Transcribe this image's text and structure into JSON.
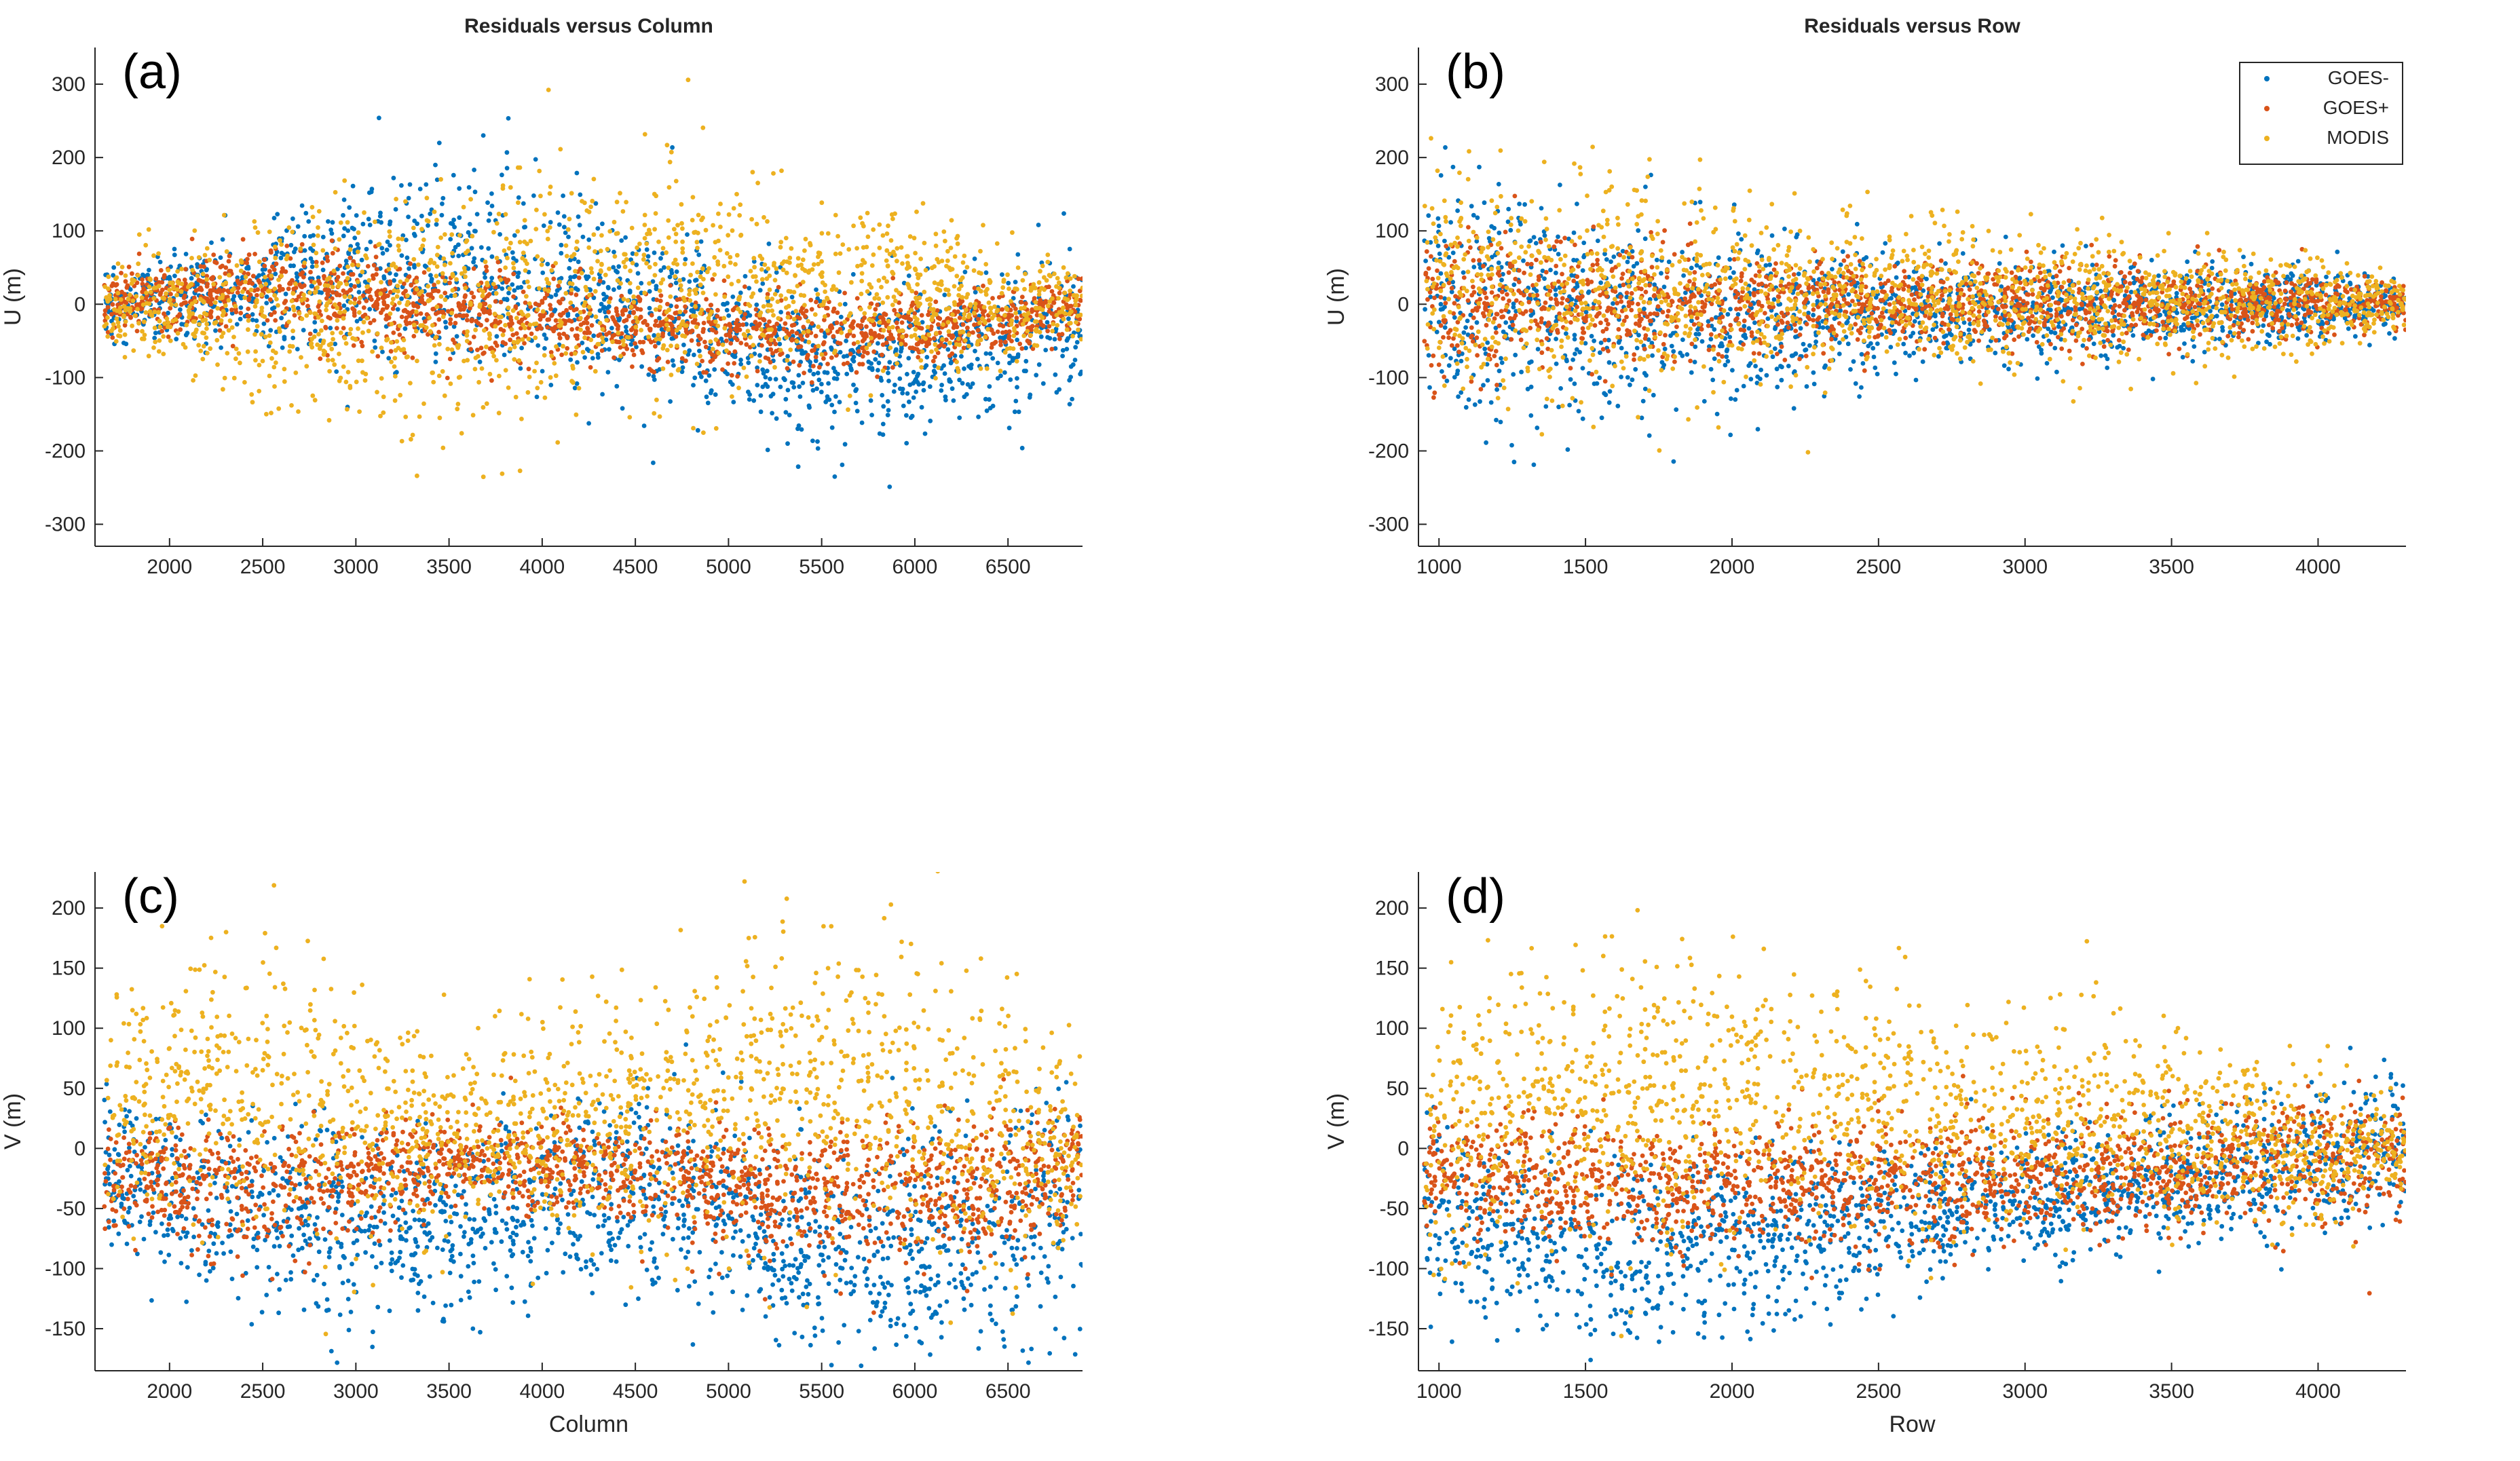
{
  "figure": {
    "series_legend": [
      {
        "name": "GOES-",
        "color": "#0072BD"
      },
      {
        "name": "GOES+",
        "color": "#D95319"
      },
      {
        "name": "MODIS",
        "color": "#EDB120"
      }
    ]
  },
  "chart_data": [
    {
      "type": "scatter",
      "panel": "(a)",
      "title": "Residuals versus Column",
      "xlabel": "",
      "ylabel": "U (m)",
      "xlim": [
        1600,
        6900
      ],
      "ylim": [
        -330,
        350
      ],
      "xticks": [
        2000,
        2500,
        3000,
        3500,
        4000,
        4500,
        5000,
        5500,
        6000,
        6500
      ],
      "yticks": [
        -300,
        -200,
        -100,
        0,
        100,
        200,
        300
      ],
      "legend": false,
      "series": [
        {
          "name": "GOES-",
          "color": "#0072BD",
          "profile": {
            "x": [
              1650,
              2500,
              3500,
              4500,
              5500,
              6500,
              6900
            ],
            "mean": [
              0,
              30,
              60,
              0,
              -80,
              -60,
              -20
            ],
            "spread": [
              20,
              40,
              70,
              60,
              50,
              50,
              60
            ]
          }
        },
        {
          "name": "GOES+",
          "color": "#D95319",
          "profile": {
            "x": [
              1650,
              2500,
              3500,
              4500,
              5500,
              6500,
              6900
            ],
            "mean": [
              0,
              25,
              -10,
              -30,
              -40,
              -25,
              0
            ],
            "spread": [
              20,
              30,
              30,
              25,
              25,
              20,
              20
            ]
          }
        },
        {
          "name": "MODIS",
          "color": "#EDB120",
          "profile": {
            "x": [
              1650,
              2500,
              3500,
              4500,
              5500,
              6500,
              6900
            ],
            "mean": [
              0,
              -20,
              0,
              30,
              20,
              0,
              0
            ],
            "spread": [
              30,
              60,
              90,
              70,
              60,
              40,
              30
            ]
          }
        }
      ]
    },
    {
      "type": "scatter",
      "panel": "(b)",
      "title": "Residuals versus Row",
      "xlabel": "",
      "ylabel": "U (m)",
      "xlim": [
        930,
        4300
      ],
      "ylim": [
        -330,
        350
      ],
      "xticks": [
        1000,
        1500,
        2000,
        2500,
        3000,
        3500,
        4000
      ],
      "yticks": [
        -300,
        -200,
        -100,
        0,
        100,
        200,
        300
      ],
      "legend": true,
      "legend_position": "top-right",
      "series": [
        {
          "name": "GOES-",
          "color": "#0072BD",
          "profile": {
            "x": [
              950,
              1500,
              2000,
              2500,
              3000,
              3500,
              4000,
              4300
            ],
            "mean": [
              20,
              -20,
              -20,
              -10,
              -10,
              0,
              0,
              0
            ],
            "spread": [
              90,
              80,
              60,
              40,
              35,
              30,
              25,
              15
            ]
          }
        },
        {
          "name": "GOES+",
          "color": "#D95319",
          "profile": {
            "x": [
              950,
              1500,
              2000,
              2500,
              3000,
              3500,
              4000,
              4300
            ],
            "mean": [
              10,
              0,
              0,
              0,
              0,
              0,
              0,
              0
            ],
            "spread": [
              50,
              40,
              35,
              30,
              30,
              25,
              20,
              15
            ]
          }
        },
        {
          "name": "MODIS",
          "color": "#EDB120",
          "profile": {
            "x": [
              950,
              1500,
              2000,
              2500,
              3000,
              3500,
              4000,
              4300
            ],
            "mean": [
              20,
              20,
              15,
              10,
              10,
              5,
              0,
              0
            ],
            "spread": [
              80,
              80,
              65,
              50,
              45,
              40,
              30,
              15
            ]
          }
        }
      ]
    },
    {
      "type": "scatter",
      "panel": "(c)",
      "title": "",
      "xlabel": "Column",
      "ylabel": "V (m)",
      "xlim": [
        1600,
        6900
      ],
      "ylim": [
        -185,
        230
      ],
      "xticks": [
        2000,
        2500,
        3000,
        3500,
        4000,
        4500,
        5000,
        5500,
        6000,
        6500
      ],
      "yticks": [
        -150,
        -100,
        -50,
        0,
        50,
        100,
        150,
        200
      ],
      "legend": false,
      "series": [
        {
          "name": "GOES-",
          "color": "#0072BD",
          "profile": {
            "x": [
              1650,
              2500,
              3500,
              4500,
              5500,
              6500,
              6900
            ],
            "mean": [
              -20,
              -60,
              -60,
              -30,
              -90,
              -80,
              -30
            ],
            "spread": [
              30,
              40,
              40,
              40,
              40,
              50,
              60
            ]
          }
        },
        {
          "name": "GOES+",
          "color": "#D95319",
          "profile": {
            "x": [
              1650,
              2500,
              3500,
              4500,
              5500,
              6500,
              6900
            ],
            "mean": [
              -20,
              -40,
              -10,
              -20,
              -40,
              -30,
              -10
            ],
            "spread": [
              20,
              30,
              20,
              20,
              30,
              30,
              20
            ]
          }
        },
        {
          "name": "MODIS",
          "color": "#EDB120",
          "profile": {
            "x": [
              1650,
              2500,
              3500,
              4500,
              5500,
              6500,
              6900
            ],
            "mean": [
              30,
              50,
              10,
              30,
              60,
              10,
              0
            ],
            "spread": [
              40,
              60,
              40,
              50,
              70,
              60,
              30
            ]
          }
        }
      ]
    },
    {
      "type": "scatter",
      "panel": "(d)",
      "title": "",
      "xlabel": "Row",
      "ylabel": "V (m)",
      "xlim": [
        930,
        4300
      ],
      "ylim": [
        -185,
        230
      ],
      "xticks": [
        1000,
        1500,
        2000,
        2500,
        3000,
        3500,
        4000
      ],
      "yticks": [
        -150,
        -100,
        -50,
        0,
        50,
        100,
        150,
        200
      ],
      "legend": false,
      "series": [
        {
          "name": "GOES-",
          "color": "#0072BD",
          "profile": {
            "x": [
              950,
              1500,
              2000,
              2500,
              3000,
              3500,
              4000,
              4300
            ],
            "mean": [
              -60,
              -90,
              -80,
              -60,
              -40,
              -30,
              -10,
              0
            ],
            "spread": [
              40,
              40,
              35,
              30,
              25,
              25,
              30,
              30
            ]
          }
        },
        {
          "name": "GOES+",
          "color": "#D95319",
          "profile": {
            "x": [
              950,
              1500,
              2000,
              2500,
              3000,
              3500,
              4000,
              4300
            ],
            "mean": [
              -20,
              -30,
              -30,
              -30,
              -25,
              -20,
              -10,
              0
            ],
            "spread": [
              25,
              25,
              25,
              25,
              25,
              25,
              30,
              30
            ]
          }
        },
        {
          "name": "MODIS",
          "color": "#EDB120",
          "profile": {
            "x": [
              950,
              1500,
              2000,
              2500,
              3000,
              3500,
              4000,
              4300
            ],
            "mean": [
              20,
              40,
              40,
              30,
              25,
              20,
              0,
              0
            ],
            "spread": [
              55,
              60,
              55,
              50,
              45,
              40,
              30,
              20
            ]
          }
        }
      ]
    }
  ]
}
